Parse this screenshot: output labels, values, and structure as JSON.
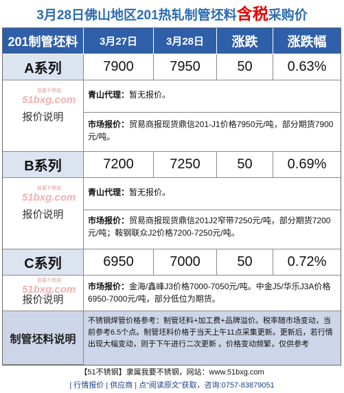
{
  "title": {
    "prefix": "3月28日佛山地区201热轧制管坯料",
    "highlight": "含税",
    "suffix": "采购价"
  },
  "table": {
    "headers": [
      "201制管坯料",
      "3月27日",
      "3月28日",
      "涨跌",
      "涨跌幅"
    ],
    "rows": [
      {
        "name": "A系列",
        "d27": "7900",
        "d28": "7950",
        "change": "50",
        "pct": "0.63%"
      },
      {
        "name": "B系列",
        "d27": "7200",
        "d28": "7250",
        "change": "50",
        "pct": "0.69%"
      },
      {
        "name": "C系列",
        "d27": "6950",
        "d28": "7000",
        "change": "50",
        "pct": "0.72%"
      }
    ]
  },
  "watermark": {
    "top": "我要不锈钢",
    "logo": "51bxg.com"
  },
  "notes": {
    "label": "报价说明",
    "a": {
      "agent_label": "青山代理：",
      "agent_text": "暂无报价。",
      "market_label": "市场报价：",
      "market_text": "贸易商报现货鼎信201-J1价格7950元/吨，部分期货7900元/吨。"
    },
    "b": {
      "agent_label": "青山代理：",
      "agent_text": "暂无报价。",
      "market_label": "市场报价：",
      "market_text": "贸易商报现货鼎信201J2窄带7250元/吨，部分期货7200元/吨；鞍钢联众J2价格7200-7250元/吨。"
    },
    "c": {
      "market_label": "市场报价：",
      "market_text": "金海/鑫峰J3价格7000-7050元/吨。中金J5/华乐J3A价格6950-7000元/吨，部分低位为期货。"
    }
  },
  "summary": {
    "label": "制管坯料说明",
    "text": "不锈钢焊管价格参考：制管坯料+加工费+品牌溢价。税率随市场变动，当前参考6.5个点。制管坯料价格于当天上午11点采集更新。更新后，若行情出现大幅变动，则于下午进行二次更新 。价格变动频繁，仅供参考"
  },
  "footer": {
    "line1": "【51不锈钢】隶属我要不锈钢，网站：www.51bxg.com",
    "line2": "| 行情报价 | 供应商 | 点“阅读原文”获取，咨询:0757-83879051"
  }
}
